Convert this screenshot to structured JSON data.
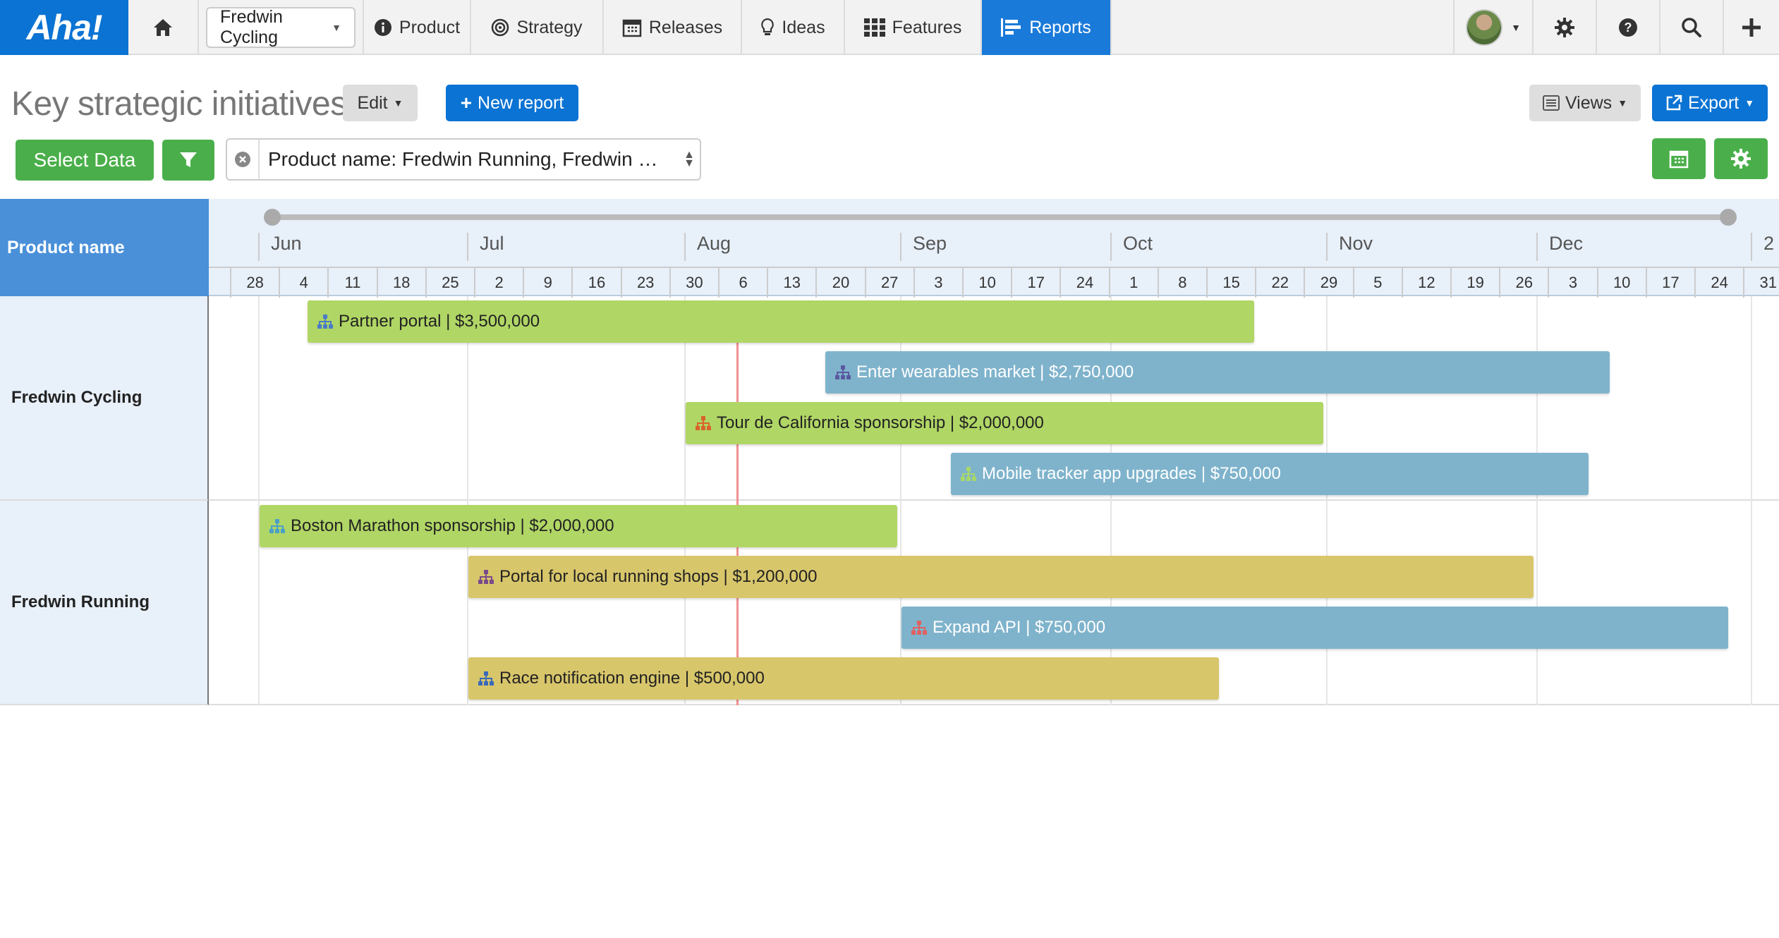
{
  "nav": {
    "logo": "Aha!",
    "product_selector": "Fredwin Cycling",
    "items": [
      {
        "label": "Product",
        "icon": "info-icon"
      },
      {
        "label": "Strategy",
        "icon": "target-icon"
      },
      {
        "label": "Releases",
        "icon": "calendar-icon"
      },
      {
        "label": "Ideas",
        "icon": "lightbulb-icon"
      },
      {
        "label": "Features",
        "icon": "grid-icon"
      },
      {
        "label": "Reports",
        "icon": "report-icon"
      }
    ],
    "active": "Reports"
  },
  "header": {
    "title": "Key strategic initiatives",
    "edit_label": "Edit",
    "new_report_label": "New report",
    "views_label": "Views",
    "export_label": "Export"
  },
  "toolbar": {
    "select_data_label": "Select Data",
    "filter_text": "Product name: Fredwin Running, Fredwin …"
  },
  "table": {
    "column_header": "Product name",
    "months": [
      "Jun",
      "Jul",
      "Aug",
      "Sep",
      "Oct",
      "Nov",
      "Dec",
      "2"
    ],
    "weeks": [
      "28",
      "4",
      "11",
      "18",
      "25",
      "2",
      "9",
      "16",
      "23",
      "30",
      "6",
      "13",
      "20",
      "27",
      "3",
      "10",
      "17",
      "24",
      "1",
      "8",
      "15",
      "22",
      "29",
      "5",
      "12",
      "19",
      "26",
      "3",
      "10",
      "17",
      "24",
      "31"
    ],
    "groups": [
      {
        "name": "Fredwin Cycling",
        "initiatives": [
          {
            "label": "Partner portal | $3,500,000",
            "color": "green"
          },
          {
            "label": "Enter wearables market | $2,750,000",
            "color": "blue"
          },
          {
            "label": "Tour de California sponsorship | $2,000,000",
            "color": "green"
          },
          {
            "label": "Mobile tracker app upgrades | $750,000",
            "color": "blue"
          }
        ]
      },
      {
        "name": "Fredwin Running",
        "initiatives": [
          {
            "label": "Boston Marathon sponsorship | $2,000,000",
            "color": "green"
          },
          {
            "label": "Portal for local running shops | $1,200,000",
            "color": "gold"
          },
          {
            "label": "Expand API | $750,000",
            "color": "blue"
          },
          {
            "label": "Race notification engine | $500,000",
            "color": "gold"
          }
        ]
      }
    ]
  }
}
